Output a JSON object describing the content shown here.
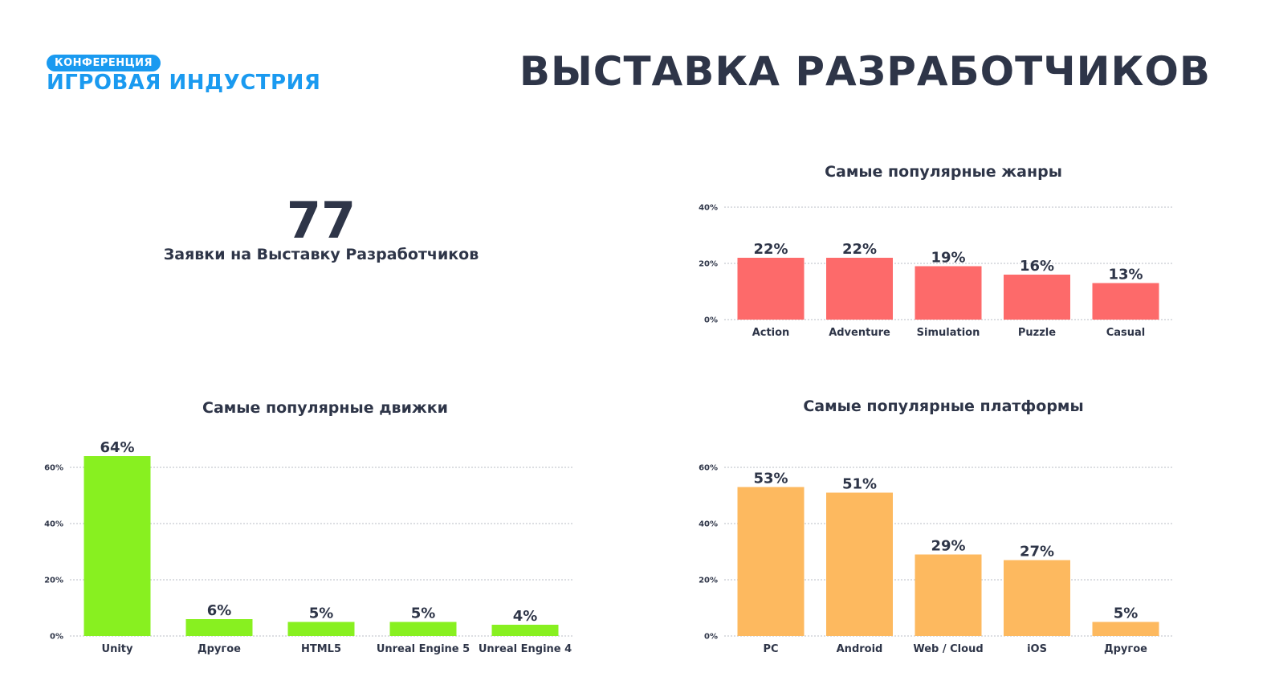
{
  "header": {
    "logo_badge": "КОНФЕРЕНЦИЯ",
    "logo_name": "ИГРОВАЯ ИНДУСТРИЯ",
    "title": "ВЫСТАВКА РАЗРАБОТЧИКОВ"
  },
  "stat": {
    "value": "77",
    "label": "Заявки на Выставку Разработчиков"
  },
  "chart_data": [
    {
      "type": "bar",
      "title": "Самые популярные жанры",
      "categories": [
        "Action",
        "Adventure",
        "Simulation",
        "Puzzle",
        "Casual"
      ],
      "values": [
        22,
        22,
        19,
        16,
        13
      ],
      "value_labels": [
        "22%",
        "22%",
        "19%",
        "16%",
        "13%"
      ],
      "yticks": [
        "0%",
        "20%",
        "40%"
      ],
      "ylim": [
        0,
        40
      ],
      "grid": true,
      "color": "#fd6a6a"
    },
    {
      "type": "bar",
      "title": "Самые популярные движки",
      "categories": [
        "Unity",
        "Другое",
        "HTML5",
        "Unreal Engine 5",
        "Unreal Engine 4"
      ],
      "values": [
        64,
        6,
        5,
        5,
        4
      ],
      "value_labels": [
        "64%",
        "6%",
        "5%",
        "5%",
        "4%"
      ],
      "yticks": [
        "0%",
        "20%",
        "40%",
        "60%"
      ],
      "ylim": [
        0,
        60
      ],
      "grid": true,
      "color": "#88f020"
    },
    {
      "type": "bar",
      "title": "Самые популярные платформы",
      "categories": [
        "PC",
        "Android",
        "Web / Cloud",
        "iOS",
        "Другое"
      ],
      "values": [
        53,
        51,
        29,
        27,
        5
      ],
      "value_labels": [
        "53%",
        "51%",
        "29%",
        "27%",
        "5%"
      ],
      "yticks": [
        "0%",
        "20%",
        "40%",
        "60%"
      ],
      "ylim": [
        0,
        60
      ],
      "grid": true,
      "color": "#fdb95f"
    }
  ]
}
